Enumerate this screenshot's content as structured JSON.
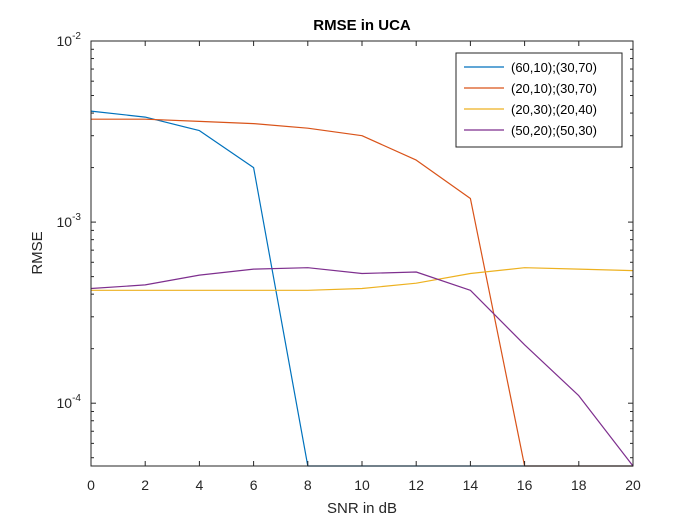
{
  "chart_data": {
    "type": "line",
    "title": "RMSE in UCA",
    "xlabel": "SNR in dB",
    "ylabel": "RMSE",
    "xlim": [
      0,
      20
    ],
    "ylim": [
      4.5e-05,
      0.01
    ],
    "yscale": "log",
    "x": [
      0,
      2,
      4,
      6,
      8,
      10,
      12,
      14,
      16,
      18,
      20
    ],
    "x_ticks": [
      0,
      2,
      4,
      6,
      8,
      10,
      12,
      14,
      16,
      18,
      20
    ],
    "y_ticks": [
      {
        "value": 0.0001,
        "base": "10",
        "exp": "-4"
      },
      {
        "value": 0.001,
        "base": "10",
        "exp": "-3"
      },
      {
        "value": 0.01,
        "base": "10",
        "exp": "-2"
      }
    ],
    "grid": false,
    "legend_position": "top-right",
    "series": [
      {
        "name": "(60,10);(30,70)",
        "color": "#0072BD",
        "values": [
          0.0041,
          0.0038,
          0.0032,
          0.002,
          4.5e-05,
          4.5e-05,
          4.5e-05,
          4.5e-05,
          4.5e-05,
          4.5e-05,
          4.5e-05
        ]
      },
      {
        "name": "(20,10);(30,70)",
        "color": "#D95319",
        "values": [
          0.0037,
          0.0037,
          0.0036,
          0.0035,
          0.0033,
          0.003,
          0.0022,
          0.00135,
          4.5e-05,
          4.5e-05,
          4.5e-05
        ]
      },
      {
        "name": "(20,30);(20,40)",
        "color": "#EDB120",
        "values": [
          0.00042,
          0.00042,
          0.00042,
          0.00042,
          0.00042,
          0.00043,
          0.00046,
          0.00052,
          0.00056,
          0.00055,
          0.00054
        ]
      },
      {
        "name": "(50,20);(50,30)",
        "color": "#7E2F8E",
        "values": [
          0.00043,
          0.00045,
          0.00051,
          0.00055,
          0.00056,
          0.00052,
          0.00053,
          0.00042,
          0.00021,
          0.00011,
          4.5e-05
        ]
      }
    ]
  }
}
